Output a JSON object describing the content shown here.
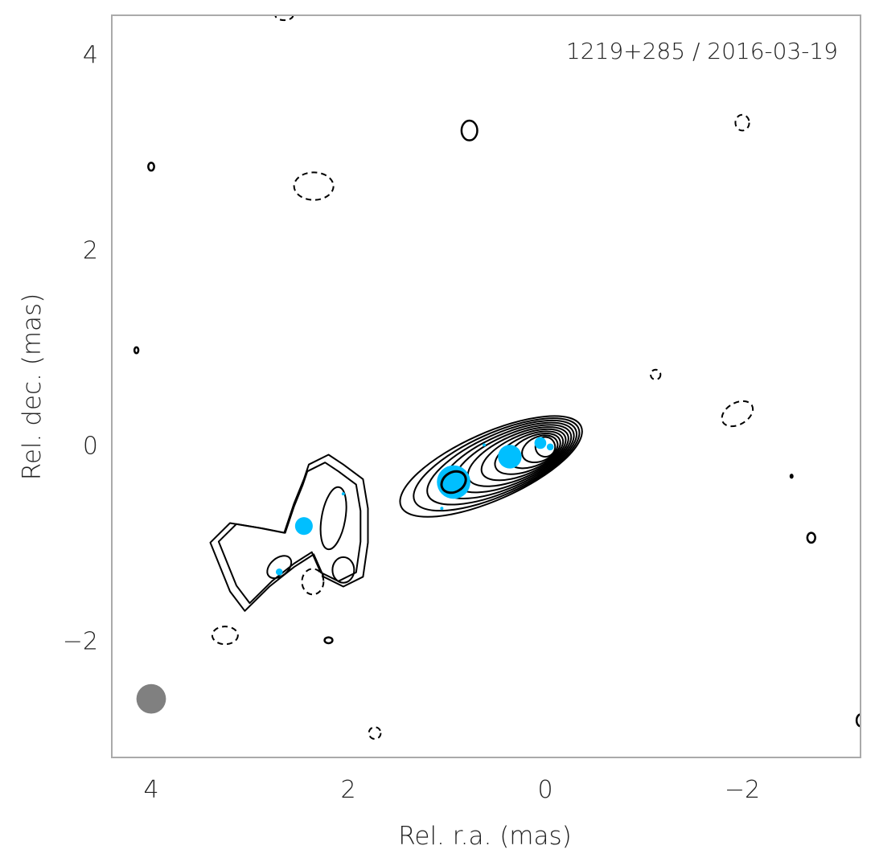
{
  "chart_data": {
    "type": "contour",
    "annotation": "1219+285 / 2016-03-19",
    "xlabel": "Rel. r.a. (mas)",
    "ylabel": "Rel. dec. (mas)",
    "xlim": [
      4.4,
      -3.2
    ],
    "ylim": [
      -3.2,
      4.4
    ],
    "xticks": [
      4,
      2,
      0,
      -2
    ],
    "yticks": [
      -2,
      0,
      2,
      4
    ],
    "xtick_labels": [
      "4",
      "2",
      "0",
      "−2"
    ],
    "ytick_labels": [
      "−2",
      "0",
      "2",
      "4"
    ],
    "grid": false,
    "colors": {
      "contour": "#000000",
      "component": "#00bfff",
      "beam": "#808080",
      "frame": "#aaaaaa"
    },
    "beam": {
      "x": 4.0,
      "y": -2.6,
      "size": 0.15
    },
    "components": [
      {
        "x": 0.93,
        "y": -0.38,
        "size": 0.17
      },
      {
        "x": 0.36,
        "y": -0.12,
        "size": 0.12
      },
      {
        "x": 0.05,
        "y": 0.02,
        "size": 0.06
      },
      {
        "x": -0.05,
        "y": -0.02,
        "size": 0.035
      },
      {
        "x": 2.45,
        "y": -0.83,
        "size": 0.09
      },
      {
        "x": 2.7,
        "y": -1.3,
        "size": 0.035
      },
      {
        "x": 1.05,
        "y": -0.65,
        "size": 0.015
      },
      {
        "x": 0.62,
        "y": 0.0,
        "size": 0.015
      },
      {
        "x": 2.05,
        "y": -0.5,
        "size": 0.012
      }
    ],
    "contours": {
      "core_levels": 11,
      "jet_regions": [
        {
          "x": 2.7,
          "y": -1.25,
          "rx": 0.14,
          "ry": 0.09,
          "angle": -40
        },
        {
          "x": 2.15,
          "y": -0.75,
          "rx": 0.12,
          "ry": 0.32,
          "angle": 10
        },
        {
          "x": 2.05,
          "y": -1.28,
          "rx": 0.11,
          "ry": 0.13,
          "angle": 0
        }
      ],
      "negative": [
        {
          "x": 2.35,
          "y": 2.65,
          "rx": 0.2,
          "ry": 0.14,
          "angle": 0
        },
        {
          "x": 2.36,
          "y": -1.4,
          "rx": 0.11,
          "ry": 0.13,
          "angle": 0
        },
        {
          "x": 3.25,
          "y": -1.95,
          "rx": 0.13,
          "ry": 0.09,
          "angle": 0
        },
        {
          "x": 2.65,
          "y": 4.4,
          "rx": 0.09,
          "ry": 0.05,
          "angle": 0
        },
        {
          "x": 1.73,
          "y": -2.95,
          "rx": 0.06,
          "ry": 0.06,
          "angle": 0
        },
        {
          "x": -2.0,
          "y": 3.3,
          "rx": 0.07,
          "ry": 0.08,
          "angle": 0
        },
        {
          "x": -1.12,
          "y": 0.72,
          "rx": 0.05,
          "ry": 0.05,
          "angle": 0
        },
        {
          "x": -1.95,
          "y": 0.32,
          "rx": 0.17,
          "ry": 0.11,
          "angle": -30
        }
      ],
      "positive": [
        {
          "x": 0.77,
          "y": 3.22,
          "rx": 0.08,
          "ry": 0.1,
          "angle": 0
        },
        {
          "x": 4.0,
          "y": 2.85,
          "rx": 0.03,
          "ry": 0.04,
          "angle": 0
        },
        {
          "x": 4.15,
          "y": 0.97,
          "rx": 0.02,
          "ry": 0.03,
          "angle": 0
        },
        {
          "x": 2.2,
          "y": -2.0,
          "rx": 0.04,
          "ry": 0.03,
          "angle": 0
        },
        {
          "x": -2.7,
          "y": -0.95,
          "rx": 0.04,
          "ry": 0.05,
          "angle": 0
        },
        {
          "x": -2.5,
          "y": -0.32,
          "rx": 0.01,
          "ry": 0.015,
          "angle": 0
        },
        {
          "x": -3.2,
          "y": -2.82,
          "rx": 0.04,
          "ry": 0.06,
          "angle": 0
        }
      ]
    }
  }
}
